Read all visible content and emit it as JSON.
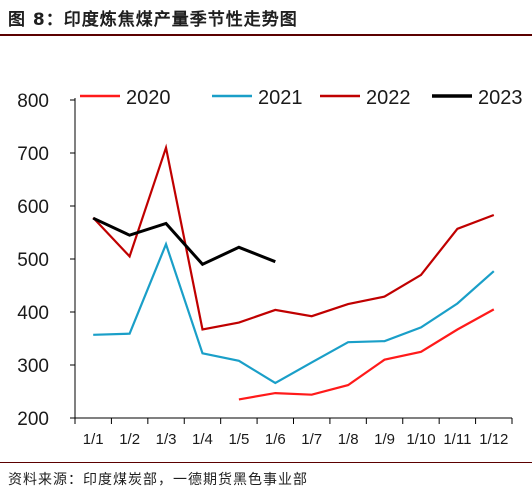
{
  "header": {
    "title": "图 8：印度炼焦煤产量季节性走势图"
  },
  "footer": {
    "source": "资料来源：印度煤炭部，一德期货黑色事业部"
  },
  "chart_data": {
    "type": "line",
    "title": "",
    "xlabel": "",
    "ylabel": "",
    "categories": [
      "1/1",
      "1/2",
      "1/3",
      "1/4",
      "1/5",
      "1/6",
      "1/7",
      "1/8",
      "1/9",
      "1/10",
      "1/11",
      "1/12"
    ],
    "ylim": [
      200,
      800
    ],
    "yticks": [
      200,
      300,
      400,
      500,
      600,
      700,
      800
    ],
    "legend_position": "top",
    "grid": false,
    "series": [
      {
        "name": "2020",
        "color": "#ff1a1a",
        "values": [
          null,
          null,
          null,
          null,
          235,
          247,
          244,
          262,
          310,
          325,
          367,
          405
        ]
      },
      {
        "name": "2021",
        "color": "#1a9fc8",
        "values": [
          357,
          359,
          528,
          322,
          308,
          266,
          305,
          343,
          345,
          371,
          416,
          477
        ]
      },
      {
        "name": "2022",
        "color": "#c00000",
        "values": [
          578,
          505,
          710,
          367,
          380,
          404,
          392,
          415,
          429,
          470,
          557,
          583
        ]
      },
      {
        "name": "2023",
        "color": "#000000",
        "values": [
          577,
          545,
          567,
          490,
          522,
          495,
          null,
          null,
          null,
          null,
          null,
          null
        ]
      }
    ]
  }
}
